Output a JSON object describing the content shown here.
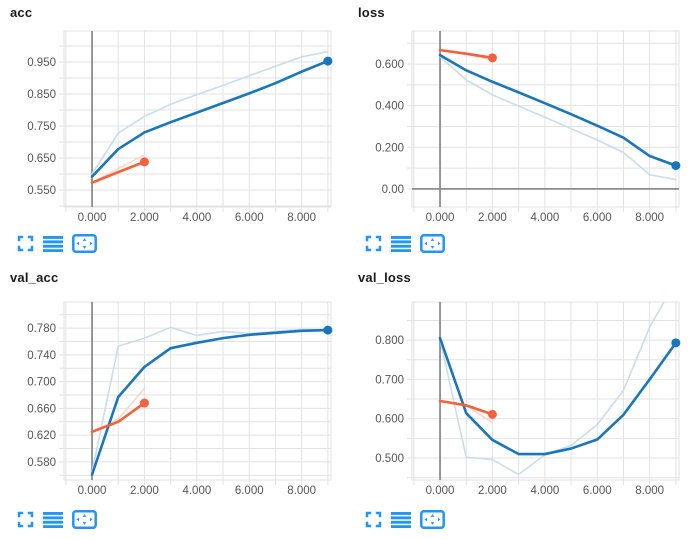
{
  "colors": {
    "run1": "#1976ba",
    "run1_raw": "#c8ddee",
    "run2": "#f4613c",
    "run2_raw": "#fbd7cb",
    "grid": "#e2e2e2",
    "zero_axis": "#8c8c8c",
    "tick_label": "#545454",
    "title": "#1c1c1c",
    "icon_blue": "#2196f3"
  },
  "card_icons": [
    {
      "name": "fullscreen"
    },
    {
      "name": "horizontal-bars"
    },
    {
      "name": "fit-to-data"
    }
  ],
  "chart_data": [
    {
      "type": "line",
      "title": "acc",
      "x": [
        0,
        1,
        2,
        3,
        4,
        5,
        6,
        7,
        8,
        9
      ],
      "x_domain": [
        -1.07,
        9.12
      ],
      "x_grid_step": 1,
      "x_ticks": [
        {
          "v": 0,
          "label": "0.000"
        },
        {
          "v": 2,
          "label": "2.000"
        },
        {
          "v": 4,
          "label": "4.000"
        },
        {
          "v": 6,
          "label": "6.000"
        },
        {
          "v": 8,
          "label": "8.000"
        }
      ],
      "y_domain": [
        0.497,
        1.047
      ],
      "y_grid_step": 0.05,
      "y_ticks": [
        {
          "v": 0.55,
          "label": "0.550"
        },
        {
          "v": 0.65,
          "label": "0.650"
        },
        {
          "v": 0.75,
          "label": "0.750"
        },
        {
          "v": 0.85,
          "label": "0.850"
        },
        {
          "v": 0.95,
          "label": "0.950"
        }
      ],
      "zero_x_line": true,
      "zero_y_line": false,
      "series": [
        {
          "name": "run1-raw",
          "role": "raw",
          "color": "run1_raw",
          "width": 1.6,
          "dot": false,
          "x": [
            0,
            1,
            2,
            3,
            4,
            5,
            6,
            7,
            8,
            9
          ],
          "y": [
            0.6,
            0.728,
            0.78,
            0.818,
            0.848,
            0.877,
            0.907,
            0.937,
            0.966,
            0.983
          ]
        },
        {
          "name": "run2-raw",
          "role": "raw",
          "color": "run2_raw",
          "width": 1.6,
          "dot": false,
          "x": [
            0,
            1,
            2
          ],
          "y": [
            0.573,
            0.617,
            0.66
          ]
        },
        {
          "name": "run1-smoothed",
          "role": "smoothed",
          "color": "run1",
          "width": 2.6,
          "dot": true,
          "x": [
            0,
            1,
            2,
            3,
            4,
            5,
            6,
            7,
            8,
            9
          ],
          "y": [
            0.592,
            0.678,
            0.73,
            0.762,
            0.792,
            0.822,
            0.852,
            0.884,
            0.92,
            0.953
          ]
        },
        {
          "name": "run2-smoothed",
          "role": "smoothed",
          "color": "run2",
          "width": 2.6,
          "dot": true,
          "x": [
            0,
            1,
            2
          ],
          "y": [
            0.573,
            0.606,
            0.638
          ]
        }
      ]
    },
    {
      "type": "line",
      "title": "loss",
      "x": [
        0,
        1,
        2,
        3,
        4,
        5,
        6,
        7,
        8,
        9
      ],
      "x_domain": [
        -1.07,
        9.12
      ],
      "x_grid_step": 1,
      "x_ticks": [
        {
          "v": 0,
          "label": "0.000"
        },
        {
          "v": 2,
          "label": "2.000"
        },
        {
          "v": 4,
          "label": "4.000"
        },
        {
          "v": 6,
          "label": "6.000"
        },
        {
          "v": 8,
          "label": "8.000"
        }
      ],
      "y_domain": [
        -0.087,
        0.759
      ],
      "y_grid_step": 0.1,
      "y_ticks": [
        {
          "v": 0,
          "label": "0.00"
        },
        {
          "v": 0.2,
          "label": "0.200"
        },
        {
          "v": 0.4,
          "label": "0.400"
        },
        {
          "v": 0.6,
          "label": "0.600"
        }
      ],
      "zero_x_line": true,
      "zero_y_line": true,
      "series": [
        {
          "name": "run1-raw",
          "role": "raw",
          "color": "run1_raw",
          "width": 1.6,
          "dot": false,
          "x": [
            0,
            1,
            2,
            3,
            4,
            5,
            6,
            7,
            8,
            9
          ],
          "y": [
            0.636,
            0.524,
            0.452,
            0.398,
            0.345,
            0.29,
            0.235,
            0.175,
            0.068,
            0.045
          ]
        },
        {
          "name": "run2-raw",
          "role": "raw",
          "color": "run2_raw",
          "width": 1.6,
          "dot": false,
          "x": [
            0,
            1,
            2
          ],
          "y": [
            0.667,
            0.647,
            0.62
          ]
        },
        {
          "name": "run1-smoothed",
          "role": "smoothed",
          "color": "run1",
          "width": 2.6,
          "dot": true,
          "x": [
            0,
            1,
            2,
            3,
            4,
            5,
            6,
            7,
            8,
            9
          ],
          "y": [
            0.643,
            0.57,
            0.515,
            0.464,
            0.412,
            0.359,
            0.304,
            0.246,
            0.158,
            0.112
          ]
        },
        {
          "name": "run2-smoothed",
          "role": "smoothed",
          "color": "run2",
          "width": 2.6,
          "dot": true,
          "x": [
            0,
            1,
            2
          ],
          "y": [
            0.667,
            0.65,
            0.63
          ]
        }
      ]
    },
    {
      "type": "line",
      "title": "val_acc",
      "x": [
        0,
        1,
        2,
        3,
        4,
        5,
        6,
        7,
        8,
        9
      ],
      "x_domain": [
        -1.07,
        9.12
      ],
      "x_grid_step": 1,
      "x_ticks": [
        {
          "v": 0,
          "label": "0.000"
        },
        {
          "v": 2,
          "label": "2.000"
        },
        {
          "v": 4,
          "label": "4.000"
        },
        {
          "v": 6,
          "label": "6.000"
        },
        {
          "v": 8,
          "label": "8.000"
        }
      ],
      "y_domain": [
        0.553,
        0.819
      ],
      "y_grid_step": 0.02,
      "y_ticks": [
        {
          "v": 0.58,
          "label": "0.580"
        },
        {
          "v": 0.62,
          "label": "0.620"
        },
        {
          "v": 0.66,
          "label": "0.660"
        },
        {
          "v": 0.7,
          "label": "0.700"
        },
        {
          "v": 0.74,
          "label": "0.740"
        },
        {
          "v": 0.78,
          "label": "0.780"
        }
      ],
      "zero_x_line": true,
      "zero_y_line": false,
      "series": [
        {
          "name": "run1-raw",
          "role": "raw",
          "color": "run1_raw",
          "width": 1.6,
          "dot": false,
          "x": [
            0,
            1,
            2,
            3,
            4,
            5,
            6,
            7,
            8,
            9
          ],
          "y": [
            0.565,
            0.753,
            0.765,
            0.781,
            0.769,
            0.775,
            0.772,
            0.775,
            0.778,
            0.777
          ]
        },
        {
          "name": "run2-raw",
          "role": "raw",
          "color": "run2_raw",
          "width": 1.6,
          "dot": false,
          "x": [
            0,
            1,
            2
          ],
          "y": [
            0.625,
            0.644,
            0.69
          ]
        },
        {
          "name": "run1-smoothed",
          "role": "smoothed",
          "color": "run1",
          "width": 2.6,
          "dot": true,
          "x": [
            0,
            1,
            2,
            3,
            4,
            5,
            6,
            7,
            8,
            9
          ],
          "y": [
            0.561,
            0.677,
            0.722,
            0.75,
            0.758,
            0.765,
            0.77,
            0.773,
            0.776,
            0.777
          ]
        },
        {
          "name": "run2-smoothed",
          "role": "smoothed",
          "color": "run2",
          "width": 2.6,
          "dot": true,
          "x": [
            0,
            1,
            2
          ],
          "y": [
            0.625,
            0.64,
            0.668
          ]
        }
      ]
    },
    {
      "type": "line",
      "title": "val_loss",
      "x": [
        0,
        1,
        2,
        3,
        4,
        5,
        6,
        7,
        8,
        9
      ],
      "x_domain": [
        -1.07,
        9.12
      ],
      "x_grid_step": 1,
      "x_ticks": [
        {
          "v": 0,
          "label": "0.000"
        },
        {
          "v": 2,
          "label": "2.000"
        },
        {
          "v": 4,
          "label": "4.000"
        },
        {
          "v": 6,
          "label": "6.000"
        },
        {
          "v": 8,
          "label": "8.000"
        }
      ],
      "y_domain": [
        0.444,
        0.897
      ],
      "y_grid_step": 0.05,
      "y_ticks": [
        {
          "v": 0.5,
          "label": "0.500"
        },
        {
          "v": 0.6,
          "label": "0.600"
        },
        {
          "v": 0.7,
          "label": "0.700"
        },
        {
          "v": 0.8,
          "label": "0.800"
        }
      ],
      "zero_x_line": true,
      "zero_y_line": false,
      "series": [
        {
          "name": "run1-raw",
          "role": "raw",
          "color": "run1_raw",
          "width": 1.6,
          "dot": false,
          "x": [
            0,
            1,
            2,
            3,
            4,
            5,
            6,
            7,
            8,
            9
          ],
          "y": [
            0.802,
            0.502,
            0.496,
            0.458,
            0.508,
            0.532,
            0.585,
            0.672,
            0.833,
            0.95
          ]
        },
        {
          "name": "run2-raw",
          "role": "raw",
          "color": "run2_raw",
          "width": 1.6,
          "dot": false,
          "x": [
            0,
            1,
            2
          ],
          "y": [
            0.645,
            0.633,
            0.59
          ]
        },
        {
          "name": "run1-smoothed",
          "role": "smoothed",
          "color": "run1",
          "width": 2.6,
          "dot": true,
          "x": [
            0,
            1,
            2,
            3,
            4,
            5,
            6,
            7,
            8,
            9
          ],
          "y": [
            0.805,
            0.614,
            0.546,
            0.51,
            0.51,
            0.524,
            0.547,
            0.61,
            0.7,
            0.793
          ]
        },
        {
          "name": "run2-smoothed",
          "role": "smoothed",
          "color": "run2",
          "width": 2.6,
          "dot": true,
          "x": [
            0,
            1,
            2
          ],
          "y": [
            0.645,
            0.634,
            0.611
          ]
        }
      ]
    }
  ]
}
